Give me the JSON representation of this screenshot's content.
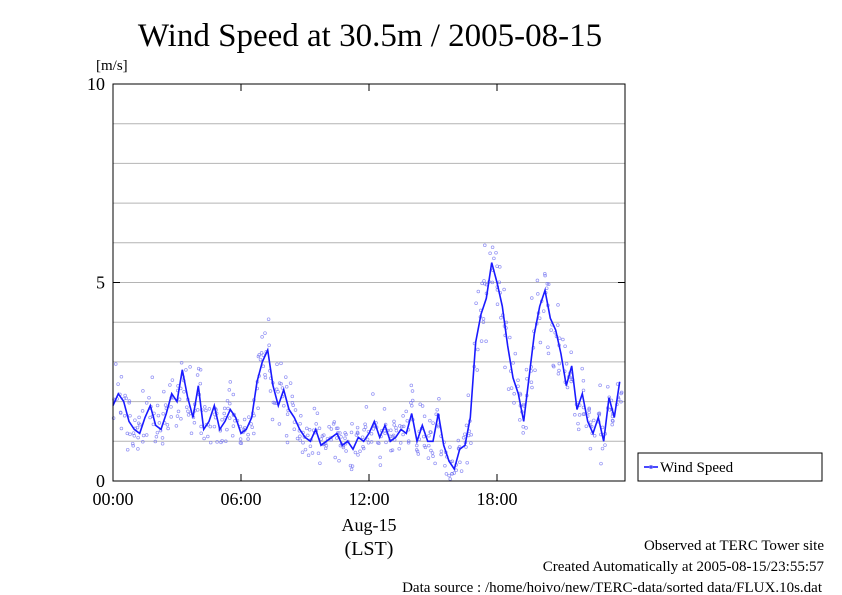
{
  "chart_data": {
    "type": "line",
    "title": "Wind Speed at 30.5m / 2005-08-15",
    "yunit": "[m/s]",
    "ylim": [
      0,
      10
    ],
    "yticks": [
      0,
      5,
      10
    ],
    "ygrid_step": 1,
    "xlim": [
      0,
      24
    ],
    "xticks": [
      {
        "value": 0,
        "label": "00:00"
      },
      {
        "value": 6,
        "label": "06:00"
      },
      {
        "value": 12,
        "label": "12:00"
      },
      {
        "value": 18,
        "label": "18:00"
      }
    ],
    "xdate_label": "Aug-15",
    "xlabel": "(LST)",
    "grid": "horizontal",
    "legend_position": "right",
    "colors": {
      "series": "#1a1aff",
      "points": "#6e6ef0",
      "grid": "#b4b4b4"
    },
    "series": [
      {
        "name": "Wind Speed",
        "x": [
          0.0,
          0.25,
          0.5,
          0.75,
          1.0,
          1.25,
          1.5,
          1.75,
          2.0,
          2.25,
          2.5,
          2.75,
          3.0,
          3.25,
          3.5,
          3.75,
          4.0,
          4.25,
          4.5,
          4.75,
          5.0,
          5.25,
          5.5,
          5.75,
          6.0,
          6.25,
          6.5,
          6.75,
          7.0,
          7.25,
          7.5,
          7.75,
          8.0,
          8.25,
          8.5,
          8.75,
          9.0,
          9.25,
          9.5,
          9.75,
          10.0,
          10.25,
          10.5,
          10.75,
          11.0,
          11.25,
          11.5,
          11.75,
          12.0,
          12.25,
          12.5,
          12.75,
          13.0,
          13.25,
          13.5,
          13.75,
          14.0,
          14.25,
          14.5,
          14.75,
          15.0,
          15.25,
          15.5,
          15.75,
          16.0,
          16.25,
          16.5,
          16.75,
          17.0,
          17.25,
          17.5,
          17.75,
          18.0,
          18.25,
          18.5,
          18.75,
          19.0,
          19.25,
          19.5,
          19.75,
          20.0,
          20.25,
          20.5,
          20.75,
          21.0,
          21.25,
          21.5,
          21.75,
          22.0,
          22.25,
          22.5,
          22.75,
          23.0,
          23.25,
          23.5,
          23.75
        ],
        "values": [
          1.9,
          2.2,
          2.0,
          1.5,
          1.3,
          1.2,
          1.6,
          1.9,
          1.4,
          1.3,
          1.7,
          2.2,
          2.0,
          2.8,
          2.1,
          1.6,
          2.4,
          1.3,
          1.5,
          1.9,
          1.3,
          1.5,
          1.8,
          1.6,
          1.2,
          1.3,
          1.6,
          2.5,
          3.0,
          3.3,
          2.4,
          1.9,
          2.3,
          1.8,
          1.6,
          1.3,
          1.1,
          1.0,
          1.3,
          0.9,
          1.0,
          1.1,
          1.2,
          0.9,
          1.0,
          0.8,
          1.1,
          1.0,
          1.2,
          1.5,
          1.1,
          1.4,
          1.0,
          1.1,
          1.3,
          1.2,
          1.7,
          1.0,
          1.4,
          1.0,
          1.0,
          1.7,
          0.9,
          0.5,
          0.3,
          0.8,
          0.9,
          1.6,
          3.5,
          4.2,
          4.6,
          5.5,
          5.0,
          4.4,
          3.4,
          2.6,
          2.2,
          1.5,
          2.6,
          3.7,
          4.4,
          4.8,
          4.1,
          3.8,
          3.2,
          2.4,
          2.9,
          1.8,
          2.2,
          1.5,
          1.2,
          1.6,
          1.0,
          2.1,
          1.6,
          2.5
        ]
      }
    ]
  },
  "footer": {
    "observed": "Observed at TERC Tower site",
    "created": "Created Automatically at 2005-08-15/23:55:57",
    "source": "Data source : /home/hoivo/new/TERC-data/sorted  data/FLUX.10s.dat"
  }
}
